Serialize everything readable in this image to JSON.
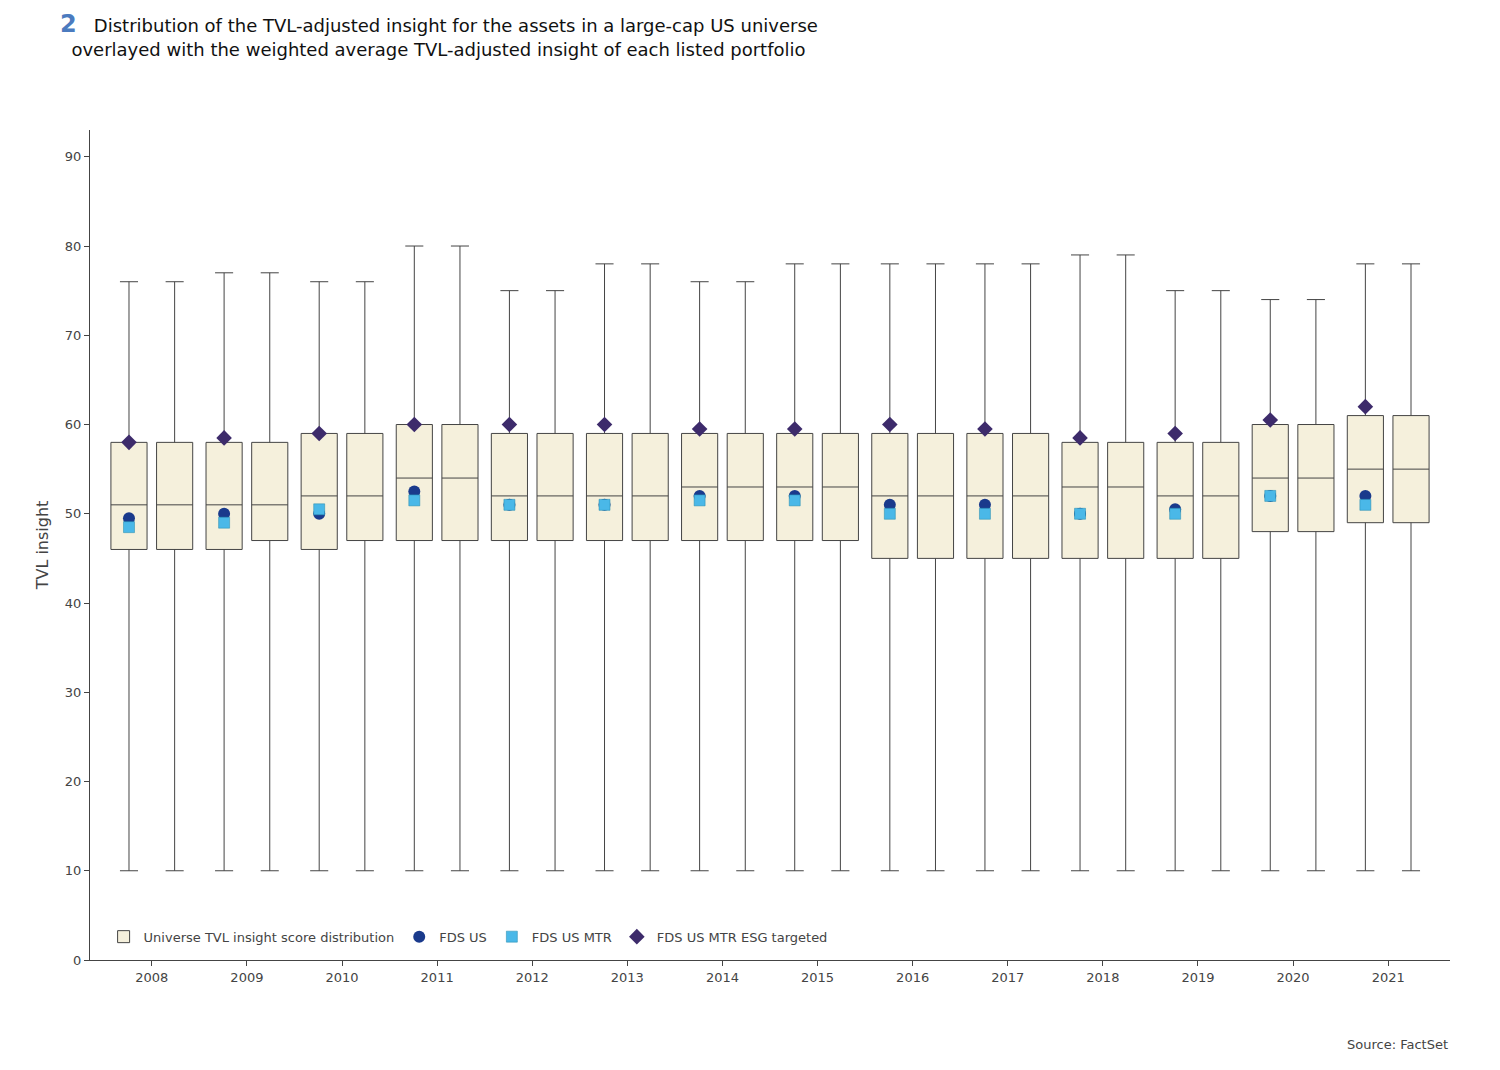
{
  "chart_data": {
    "type": "box",
    "title": "Distribution of the TVL-adjusted insight for the assets in a large-cap US universe",
    "subtitle": "  overlayed with the weighted average TVL-adjusted insight of each listed portfolio",
    "annotations": [
      {
        "text": "2"
      },
      {
        "text": "Source: FactSet"
      }
    ],
    "ylabel": "TVL insight",
    "categories": [
      "2008",
      "2009",
      "2010",
      "2011",
      "2012",
      "2013",
      "2014",
      "2015",
      "2016",
      "2017",
      "2018",
      "2019",
      "2020",
      "2021"
    ],
    "series": [
      {
        "name": "Universe TVL insight score distribution",
        "type": "box",
        "color": "#F5F0DC",
        "groups": [
          {
            "whisker_low": [
              10,
              10,
              10,
              10,
              10,
              10,
              10,
              10,
              10,
              10,
              10,
              10,
              10,
              10
            ],
            "q1": [
              46,
              46,
              46,
              47,
              47,
              47,
              47,
              47,
              45,
              45,
              45,
              45,
              48,
              49
            ],
            "median": [
              51,
              51,
              52,
              54,
              52,
              52,
              53,
              53,
              52,
              52,
              53,
              52,
              54,
              55
            ],
            "q3": [
              58,
              58,
              59,
              60,
              59,
              59,
              59,
              59,
              59,
              59,
              58,
              58,
              60,
              61
            ],
            "whisker_high": [
              76,
              77,
              76,
              80,
              75,
              78,
              76,
              78,
              78,
              78,
              79,
              75,
              74,
              78
            ]
          },
          {
            "whisker_low": [
              10,
              10,
              10,
              10,
              10,
              10,
              10,
              10,
              10,
              10,
              10,
              10,
              10,
              10
            ],
            "q1": [
              46,
              47,
              47,
              47,
              47,
              47,
              47,
              47,
              45,
              45,
              45,
              45,
              48,
              49
            ],
            "median": [
              51,
              51,
              52,
              54,
              52,
              52,
              53,
              53,
              52,
              52,
              53,
              52,
              54,
              55
            ],
            "q3": [
              58,
              58,
              59,
              60,
              59,
              59,
              59,
              59,
              59,
              59,
              58,
              58,
              60,
              61
            ],
            "whisker_high": [
              76,
              77,
              76,
              80,
              75,
              78,
              76,
              78,
              78,
              78,
              79,
              75,
              74,
              78
            ]
          }
        ]
      },
      {
        "name": "FDS US",
        "type": "scatter",
        "marker": "circle",
        "color": "#1a3a8c",
        "values": [
          49.5,
          50,
          50,
          52.5,
          51,
          51,
          52,
          52,
          51,
          51,
          50,
          50.5,
          52,
          52
        ]
      },
      {
        "name": "FDS US MTR",
        "type": "scatter",
        "marker": "square",
        "color": "#4ab8e8",
        "values": [
          48.5,
          49,
          50.5,
          51.5,
          51,
          51,
          51.5,
          51.5,
          50,
          50,
          50,
          50,
          52,
          51
        ]
      },
      {
        "name": "FDS US MTR ESG targeted",
        "type": "scatter",
        "marker": "diamond",
        "color": "#3d2b6b",
        "values": [
          58,
          58.5,
          59,
          60,
          60,
          60,
          59.5,
          59.5,
          60,
          59.5,
          58.5,
          59,
          60.5,
          62
        ]
      }
    ],
    "ylim": [
      0,
      93
    ],
    "yticks": [
      0,
      10,
      20,
      30,
      40,
      50,
      60,
      70,
      80,
      90
    ],
    "grid": false,
    "legend": "lower left"
  }
}
